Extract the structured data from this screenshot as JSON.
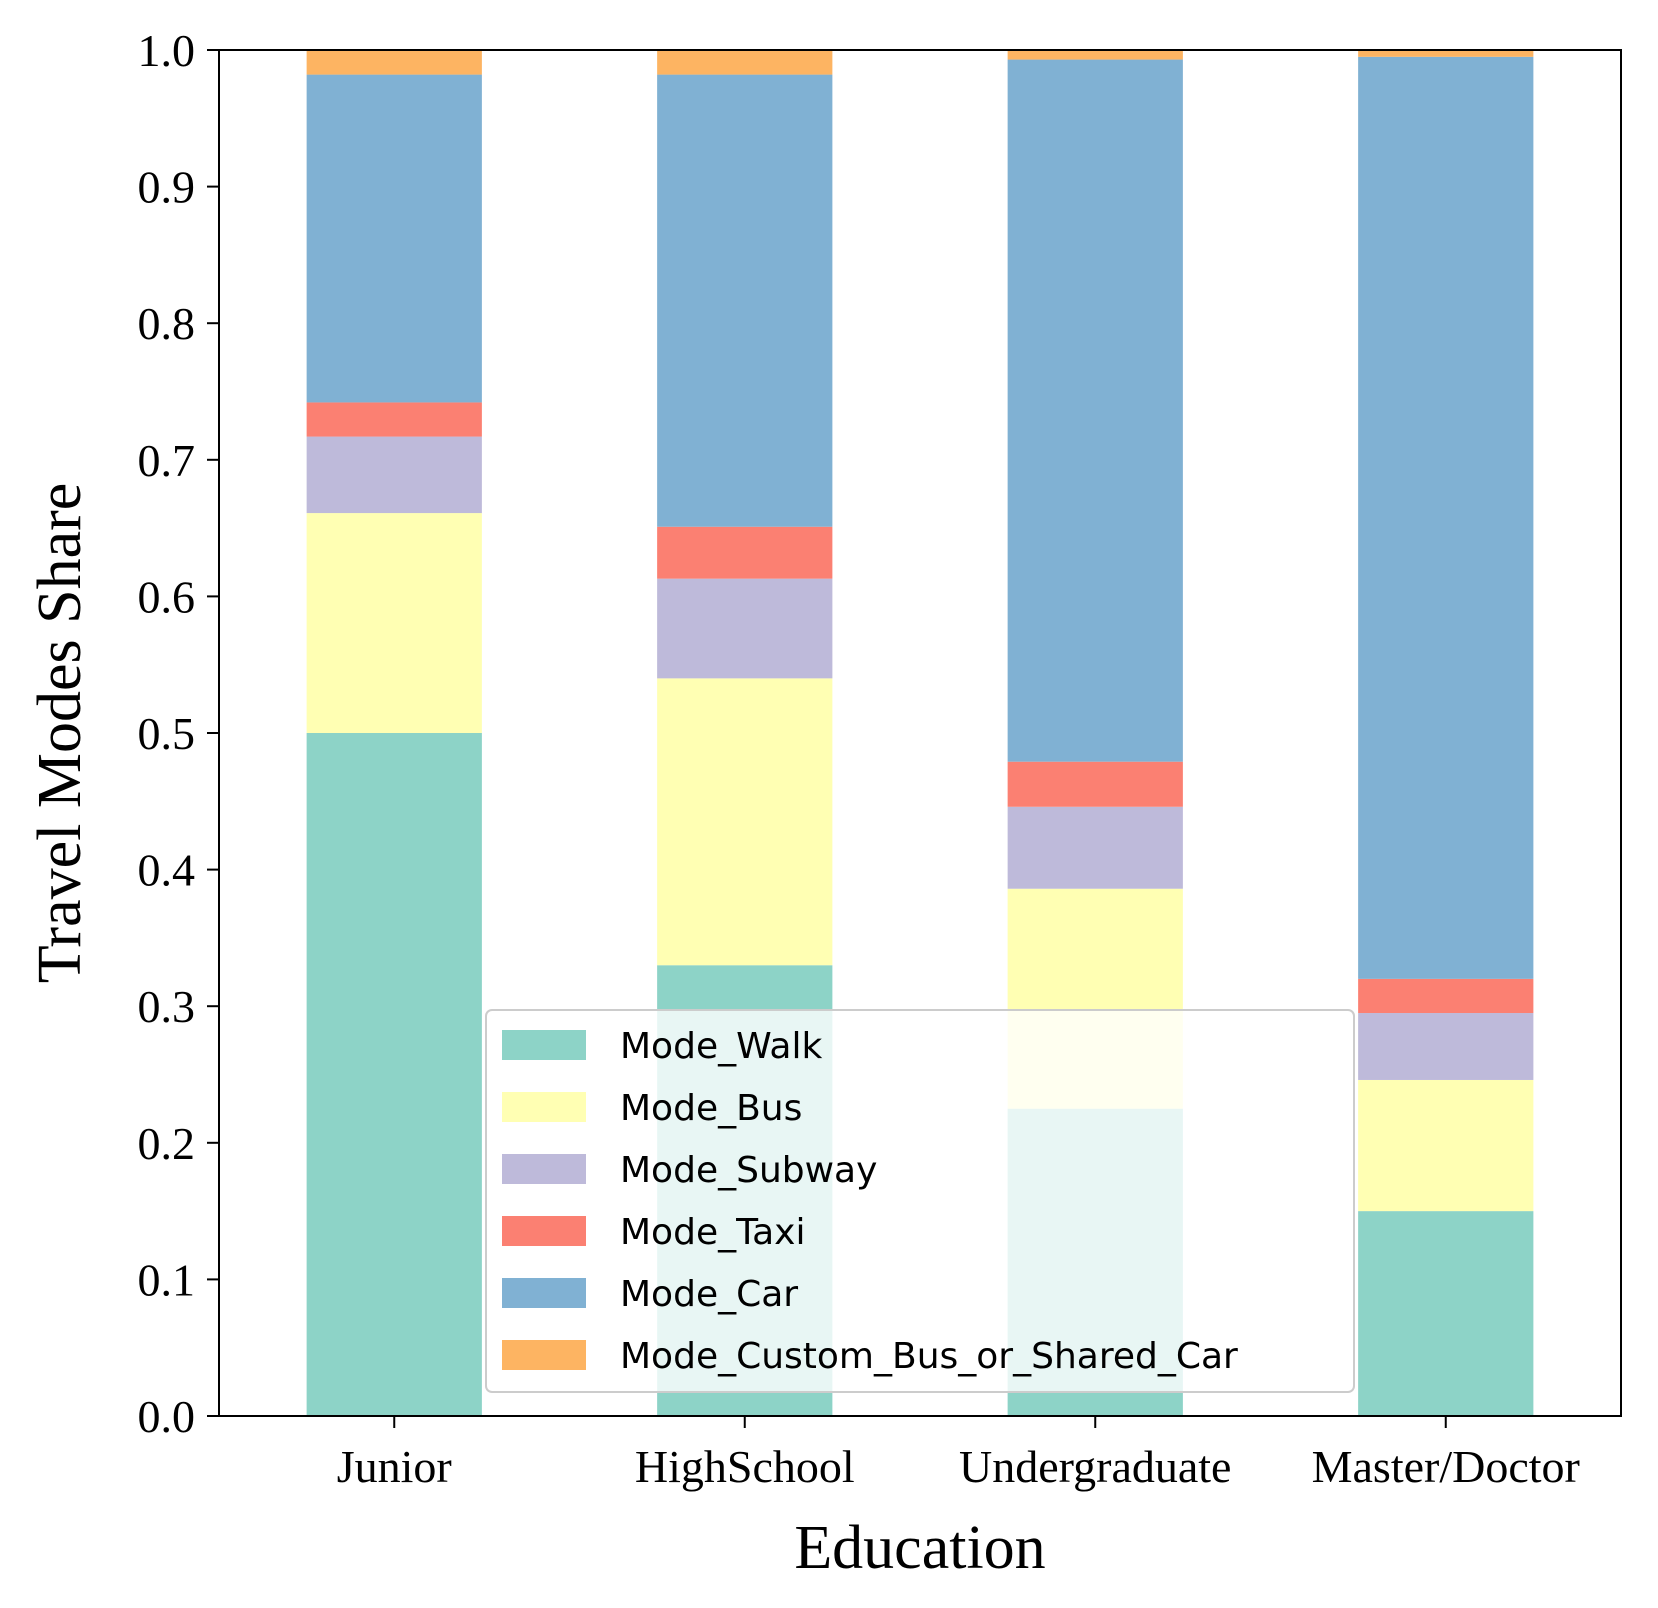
{
  "chart_data": {
    "type": "bar",
    "stacked": true,
    "title": "",
    "xlabel": "Education",
    "ylabel": "Travel Modes Share",
    "ylim": [
      0,
      1.0
    ],
    "yticks": [
      "0.0",
      "0.1",
      "0.2",
      "0.3",
      "0.4",
      "0.5",
      "0.6",
      "0.7",
      "0.8",
      "0.9",
      "1.0"
    ],
    "categories": [
      "Junior",
      "HighSchool",
      "Undergraduate",
      "Master/Doctor"
    ],
    "series": [
      {
        "name": "Mode_Walk",
        "color": "#8dd3c7",
        "values": [
          0.5,
          0.33,
          0.225,
          0.15
        ]
      },
      {
        "name": "Mode_Bus",
        "color": "#ffffb3",
        "values": [
          0.161,
          0.21,
          0.161,
          0.096
        ]
      },
      {
        "name": "Mode_Subway",
        "color": "#bebada",
        "values": [
          0.056,
          0.073,
          0.06,
          0.049
        ]
      },
      {
        "name": "Mode_Taxi",
        "color": "#fb8072",
        "values": [
          0.025,
          0.038,
          0.033,
          0.025
        ]
      },
      {
        "name": "Mode_Car",
        "color": "#80b1d3",
        "values": [
          0.24,
          0.331,
          0.514,
          0.675
        ]
      },
      {
        "name": "Mode_Custom_Bus_or_Shared_Car",
        "color": "#fdb462",
        "values": [
          0.018,
          0.018,
          0.007,
          0.005
        ]
      }
    ],
    "grid": false,
    "legend_position": "lower-center"
  }
}
